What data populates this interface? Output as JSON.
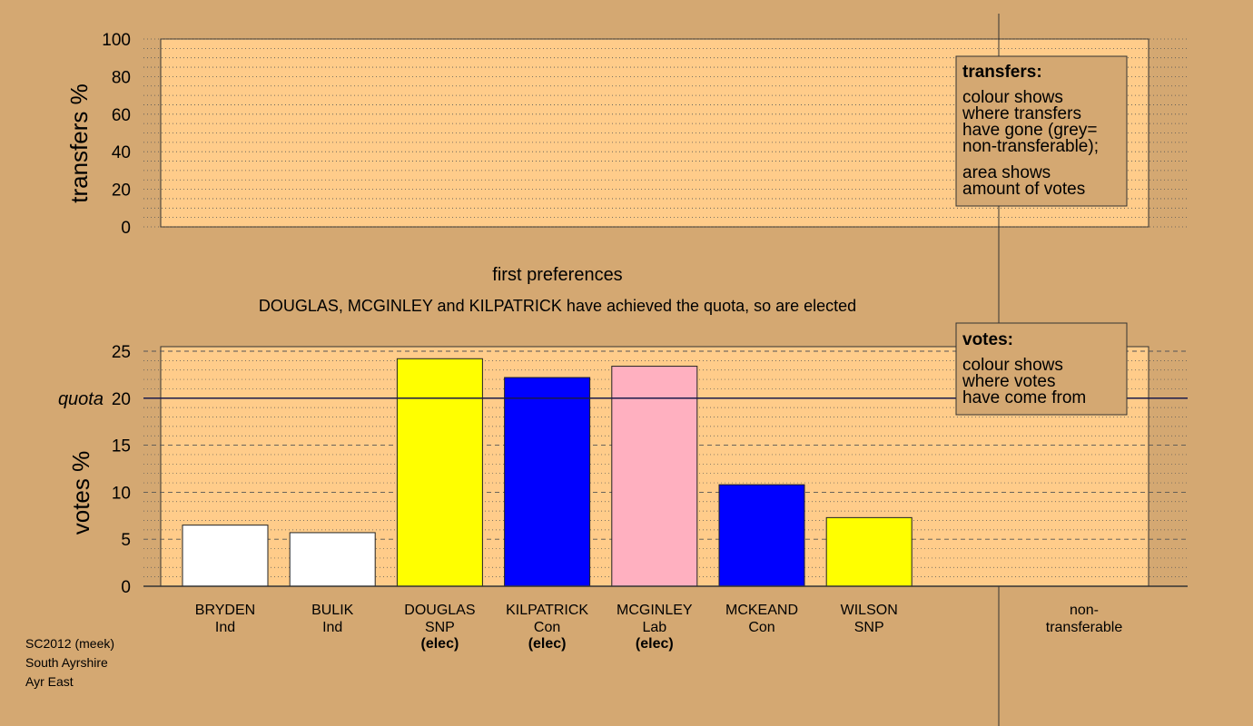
{
  "chart_data": [
    {
      "type": "bar",
      "panel": "transfers",
      "ylabel": "transfers %",
      "ylim": [
        0,
        100
      ],
      "yticks": [
        0,
        20,
        40,
        60,
        80,
        100
      ],
      "values": []
    },
    {
      "type": "bar",
      "panel": "votes",
      "title": "first preferences",
      "subtitle": "DOUGLAS, MCGINLEY and KILPATRICK have achieved the quota, so are elected",
      "ylabel": "votes %",
      "ylim": [
        0,
        25
      ],
      "yticks": [
        0,
        5,
        10,
        15,
        20,
        25
      ],
      "quota": 20,
      "quota_label": "quota",
      "categories": [
        {
          "name": "BRYDEN",
          "party": "Ind",
          "elected": "",
          "value": 6.5,
          "color": "#ffffff"
        },
        {
          "name": "BULIK",
          "party": "Ind",
          "elected": "",
          "value": 5.7,
          "color": "#ffffff"
        },
        {
          "name": "DOUGLAS",
          "party": "SNP",
          "elected": "(elec)",
          "value": 24.2,
          "color": "#ffff00"
        },
        {
          "name": "KILPATRICK",
          "party": "Con",
          "elected": "(elec)",
          "value": 22.2,
          "color": "#0000ff"
        },
        {
          "name": "MCGINLEY",
          "party": "Lab",
          "elected": "(elec)",
          "value": 23.4,
          "color": "#ffb0c0"
        },
        {
          "name": "MCKEAND",
          "party": "Con",
          "elected": "",
          "value": 10.8,
          "color": "#0000ff"
        },
        {
          "name": "WILSON",
          "party": "SNP",
          "elected": "",
          "value": 7.3,
          "color": "#ffff00"
        }
      ],
      "extra_category": [
        "non-",
        "transferable"
      ]
    }
  ],
  "legend_transfers": {
    "title": "transfers:",
    "lines": [
      "colour shows",
      "where transfers",
      "have gone (grey=",
      "non-transferable);"
    ],
    "lines2": [
      "area shows",
      "amount of votes"
    ]
  },
  "legend_votes": {
    "title": "votes:",
    "lines": [
      "colour shows",
      "where votes",
      "have come from"
    ]
  },
  "footer": [
    "SC2012 (meek)",
    "South Ayrshire",
    "Ayr East"
  ],
  "colors": {
    "background": "#d4a872",
    "panel": "#ffcc8a"
  }
}
